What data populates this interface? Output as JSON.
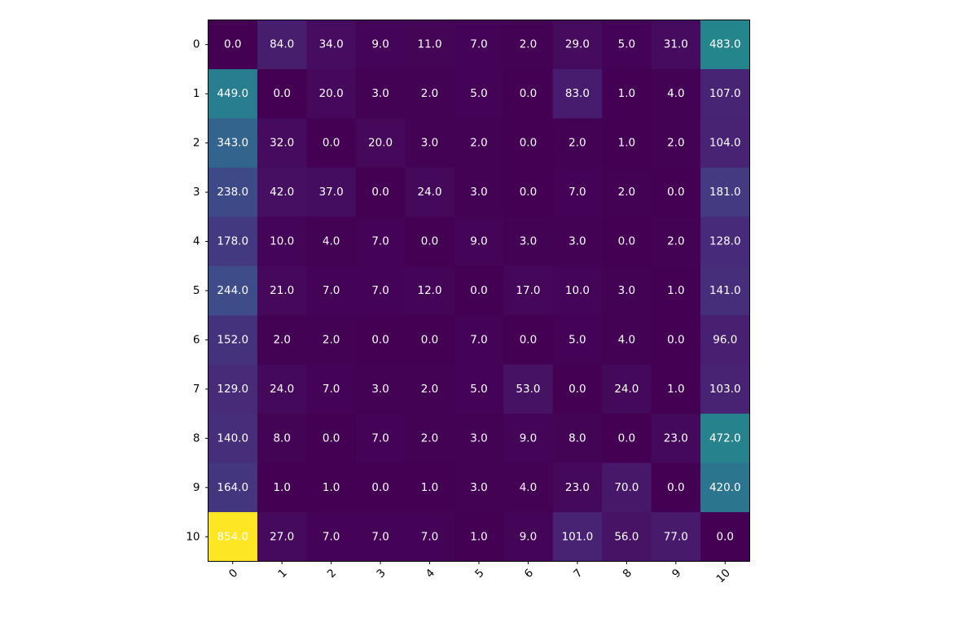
{
  "chart_data": {
    "type": "heatmap",
    "title": "",
    "xlabel": "",
    "ylabel": "",
    "x_tick_labels": [
      "0",
      "1",
      "2",
      "3",
      "4",
      "5",
      "6",
      "7",
      "8",
      "9",
      "10"
    ],
    "y_tick_labels": [
      "0",
      "1",
      "2",
      "3",
      "4",
      "5",
      "6",
      "7",
      "8",
      "9",
      "10"
    ],
    "value_format": "one-decimal",
    "colormap": "viridis",
    "value_range": [
      0,
      854
    ],
    "colorbar": false,
    "grid": false,
    "x_tick_rotation_deg": 45,
    "values": [
      [
        0,
        84,
        34,
        9,
        11,
        7,
        2,
        29,
        5,
        31,
        483
      ],
      [
        449,
        0,
        20,
        3,
        2,
        5,
        0,
        83,
        1,
        4,
        107
      ],
      [
        343,
        32,
        0,
        20,
        3,
        2,
        0,
        2,
        1,
        2,
        104
      ],
      [
        238,
        42,
        37,
        0,
        24,
        3,
        0,
        7,
        2,
        0,
        181
      ],
      [
        178,
        10,
        4,
        7,
        0,
        9,
        3,
        3,
        0,
        2,
        128
      ],
      [
        244,
        21,
        7,
        7,
        12,
        0,
        17,
        10,
        3,
        1,
        141
      ],
      [
        152,
        2,
        2,
        0,
        0,
        7,
        0,
        5,
        4,
        0,
        96
      ],
      [
        129,
        24,
        7,
        3,
        2,
        5,
        53,
        0,
        24,
        1,
        103
      ],
      [
        140,
        8,
        0,
        7,
        2,
        3,
        9,
        8,
        0,
        23,
        472
      ],
      [
        164,
        1,
        1,
        0,
        1,
        3,
        4,
        23,
        70,
        0,
        420
      ],
      [
        854,
        27,
        7,
        7,
        7,
        1,
        9,
        101,
        56,
        77,
        0
      ]
    ]
  }
}
